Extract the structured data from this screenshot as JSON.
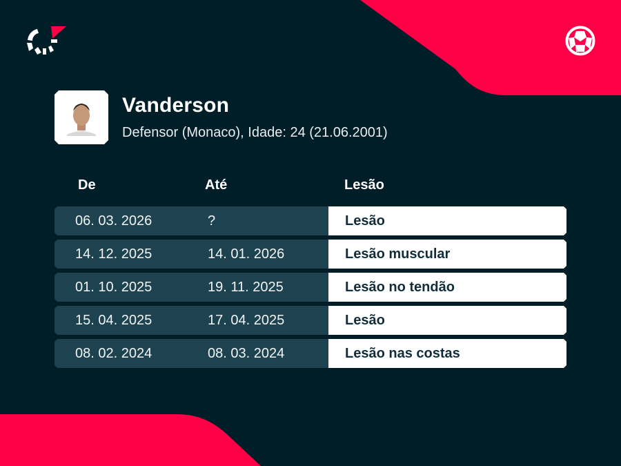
{
  "colors": {
    "background": "#001e28",
    "accent": "#ff0046",
    "row_dark": "#1e4350",
    "row_light": "#ffffff"
  },
  "icons": {
    "logo": "flashscore-logo",
    "sport": "football-icon"
  },
  "player": {
    "name": "Vanderson",
    "info": "Defensor (Monaco), Idade: 24 (21.06.2001)"
  },
  "table": {
    "headers": {
      "from": "De",
      "to": "Até",
      "injury": "Lesão"
    },
    "rows": [
      {
        "from": "06. 03. 2026",
        "to": "?",
        "injury": "Lesão"
      },
      {
        "from": "14. 12. 2025",
        "to": "14. 01. 2026",
        "injury": "Lesão muscular"
      },
      {
        "from": "01. 10. 2025",
        "to": "19. 11. 2025",
        "injury": "Lesão no tendão"
      },
      {
        "from": "15. 04. 2025",
        "to": "17. 04. 2025",
        "injury": "Lesão"
      },
      {
        "from": "08. 02. 2024",
        "to": "08. 03. 2024",
        "injury": "Lesão nas costas"
      }
    ]
  }
}
